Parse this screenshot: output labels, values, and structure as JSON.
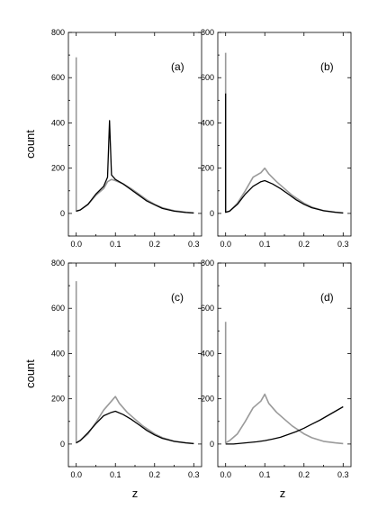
{
  "figure": {
    "ylabel": "count",
    "xlabel": "z"
  },
  "chart_data": [
    {
      "type": "line",
      "panel_label": "(a)",
      "xlabel": "",
      "ylabel": "count",
      "xlim": [
        -0.02,
        0.32
      ],
      "ylim": [
        -100,
        800
      ],
      "xticks": [
        "0.0",
        "0.1",
        "0.2",
        "0.3"
      ],
      "yticks": [
        "0",
        "200",
        "400",
        "600",
        "800"
      ],
      "series": [
        {
          "color": "#9a9a9a",
          "x": [
            0.0,
            0.0,
            0.0,
            0.01,
            0.03,
            0.05,
            0.07,
            0.08,
            0.09,
            0.1,
            0.12,
            0.14,
            0.16,
            0.18,
            0.2,
            0.22,
            0.25,
            0.28,
            0.3
          ],
          "y": [
            690,
            10,
            10,
            15,
            40,
            80,
            110,
            140,
            150,
            145,
            130,
            110,
            85,
            60,
            40,
            25,
            12,
            5,
            2
          ]
        },
        {
          "color": "#000000",
          "x": [
            0.0,
            0.01,
            0.03,
            0.05,
            0.07,
            0.08,
            0.085,
            0.09,
            0.1,
            0.12,
            0.14,
            0.16,
            0.18,
            0.2,
            0.22,
            0.25,
            0.28,
            0.3
          ],
          "y": [
            10,
            15,
            40,
            85,
            120,
            160,
            410,
            170,
            150,
            130,
            105,
            80,
            55,
            38,
            22,
            10,
            4,
            2
          ]
        }
      ]
    },
    {
      "type": "line",
      "panel_label": "(b)",
      "xlabel": "",
      "ylabel": "",
      "xlim": [
        -0.02,
        0.32
      ],
      "ylim": [
        -100,
        800
      ],
      "xticks": [
        "0.0",
        "0.1",
        "0.2",
        "0.3"
      ],
      "yticks": [
        "0",
        "200",
        "400",
        "600",
        "800"
      ],
      "series": [
        {
          "color": "#9a9a9a",
          "x": [
            0.0,
            0.0,
            0.0,
            0.01,
            0.03,
            0.05,
            0.07,
            0.09,
            0.1,
            0.11,
            0.13,
            0.15,
            0.17,
            0.2,
            0.22,
            0.25,
            0.28,
            0.3
          ],
          "y": [
            710,
            5,
            5,
            10,
            45,
            100,
            160,
            180,
            200,
            175,
            140,
            110,
            80,
            45,
            28,
            12,
            5,
            2
          ]
        },
        {
          "color": "#000000",
          "x": [
            0.0,
            0.0,
            0.0,
            0.01,
            0.03,
            0.05,
            0.07,
            0.09,
            0.1,
            0.12,
            0.14,
            0.16,
            0.18,
            0.2,
            0.22,
            0.25,
            0.28,
            0.3
          ],
          "y": [
            530,
            5,
            5,
            10,
            40,
            85,
            120,
            140,
            145,
            130,
            110,
            85,
            60,
            40,
            25,
            12,
            5,
            2
          ]
        }
      ]
    },
    {
      "type": "line",
      "panel_label": "(c)",
      "xlabel": "z",
      "ylabel": "count",
      "xlim": [
        -0.02,
        0.32
      ],
      "ylim": [
        -100,
        800
      ],
      "xticks": [
        "0.0",
        "0.1",
        "0.2",
        "0.3"
      ],
      "yticks": [
        "0",
        "200",
        "400",
        "600",
        "800"
      ],
      "series": [
        {
          "color": "#9a9a9a",
          "x": [
            0.0,
            0.0,
            0.0,
            0.01,
            0.03,
            0.05,
            0.07,
            0.09,
            0.1,
            0.11,
            0.13,
            0.15,
            0.17,
            0.2,
            0.22,
            0.25,
            0.28,
            0.3
          ],
          "y": [
            720,
            5,
            5,
            15,
            45,
            95,
            150,
            190,
            210,
            180,
            140,
            110,
            80,
            45,
            28,
            12,
            5,
            2
          ]
        },
        {
          "color": "#000000",
          "x": [
            0.0,
            0.01,
            0.03,
            0.05,
            0.07,
            0.09,
            0.1,
            0.12,
            0.14,
            0.16,
            0.18,
            0.2,
            0.22,
            0.25,
            0.28,
            0.3
          ],
          "y": [
            5,
            15,
            50,
            90,
            125,
            140,
            145,
            130,
            110,
            85,
            60,
            40,
            25,
            12,
            5,
            2
          ]
        }
      ]
    },
    {
      "type": "line",
      "panel_label": "(d)",
      "xlabel": "z",
      "ylabel": "",
      "xlim": [
        -0.02,
        0.32
      ],
      "ylim": [
        -100,
        800
      ],
      "xticks": [
        "0.0",
        "0.1",
        "0.2",
        "0.3"
      ],
      "yticks": [
        "0",
        "200",
        "400",
        "600",
        "800"
      ],
      "series": [
        {
          "color": "#9a9a9a",
          "x": [
            0.0,
            0.0,
            0.0,
            0.01,
            0.03,
            0.05,
            0.07,
            0.09,
            0.1,
            0.11,
            0.13,
            0.15,
            0.17,
            0.2,
            0.22,
            0.25,
            0.28,
            0.3
          ],
          "y": [
            540,
            5,
            5,
            15,
            45,
            100,
            160,
            190,
            220,
            180,
            140,
            110,
            80,
            45,
            28,
            12,
            5,
            2
          ]
        },
        {
          "color": "#000000",
          "x": [
            0.0,
            0.02,
            0.05,
            0.08,
            0.1,
            0.12,
            0.14,
            0.16,
            0.18,
            0.2,
            0.22,
            0.24,
            0.26,
            0.28,
            0.3
          ],
          "y": [
            0,
            0,
            5,
            10,
            15,
            22,
            30,
            42,
            55,
            70,
            88,
            105,
            125,
            145,
            165
          ]
        }
      ]
    }
  ]
}
